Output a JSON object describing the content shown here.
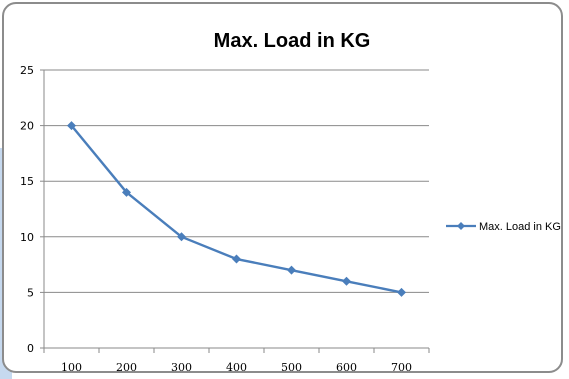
{
  "chart_data": {
    "type": "line",
    "title": "Max. Load in KG",
    "xlabel": "",
    "ylabel": "",
    "categories": [
      "100",
      "200",
      "300",
      "400",
      "500",
      "600",
      "700"
    ],
    "series": [
      {
        "name": "Max. Load in KG",
        "values": [
          20,
          14,
          10,
          8,
          7,
          6,
          5
        ],
        "color": "#4a7ebb"
      }
    ],
    "ylim": [
      0,
      25
    ],
    "yticks": [
      "0",
      "5",
      "10",
      "15",
      "20",
      "25"
    ],
    "grid": true,
    "legend": "right"
  }
}
